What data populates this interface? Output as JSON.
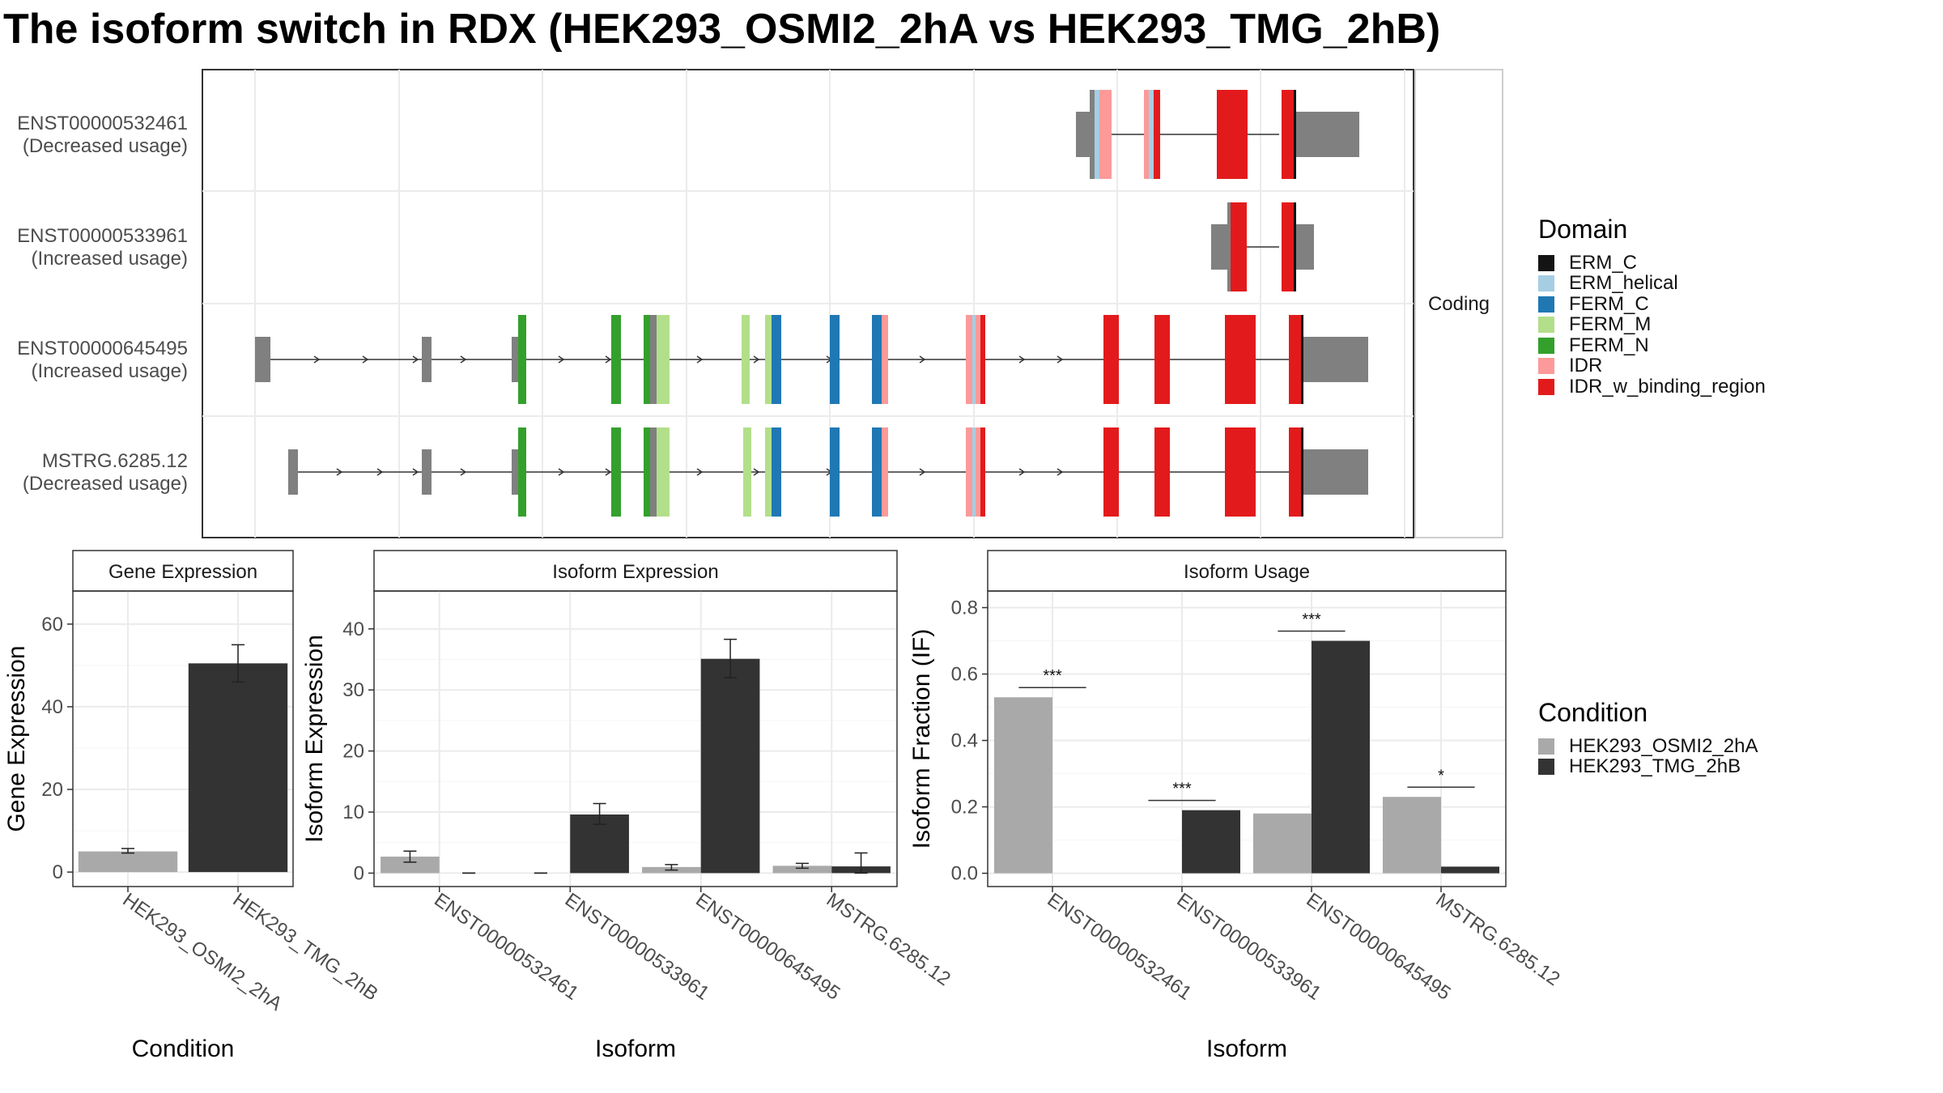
{
  "title": "The isoform switch in RDX (HEK293_OSMI2_2hA vs HEK293_TMG_2hB)",
  "colors": {
    "ERM_C": "#141414",
    "ERM_helical": "#a6cee3",
    "FERM_C": "#1f78b4",
    "FERM_M": "#b2df8a",
    "FERM_N": "#33a02c",
    "IDR": "#fb9a99",
    "IDR_w_binding_region": "#e31a1c",
    "utr": "#808080",
    "cond_A": "#a9a9a9",
    "cond_B": "#333333"
  },
  "domain_legend": {
    "title": "Domain",
    "items": [
      {
        "label": "ERM_C",
        "color": "#141414"
      },
      {
        "label": "ERM_helical",
        "color": "#a6cee3"
      },
      {
        "label": "FERM_C",
        "color": "#1f78b4"
      },
      {
        "label": "FERM_M",
        "color": "#b2df8a"
      },
      {
        "label": "FERM_N",
        "color": "#33a02c"
      },
      {
        "label": "IDR",
        "color": "#fb9a99"
      },
      {
        "label": "IDR_w_binding_region",
        "color": "#e31a1c"
      }
    ]
  },
  "condition_legend": {
    "title": "Condition",
    "items": [
      {
        "label": "HEK293_OSMI2_2hA",
        "color": "#a9a9a9"
      },
      {
        "label": "HEK293_TMG_2hB",
        "color": "#333333"
      }
    ]
  },
  "chart_data": [
    {
      "type": "gene-structure",
      "strip_label": "Coding",
      "transcripts": [
        {
          "name": "ENST00000532461",
          "usage": "(Decreased usage)",
          "exons": [
            {
              "start": 0.0,
              "end": 0.012,
              "tall": false
            },
            {
              "start": 0.012,
              "end": 0.031,
              "tall": true,
              "domain": "IDR"
            },
            {
              "start": 0.0,
              "end": 0.0,
              "tall": false
            },
            {
              "start": 0.063,
              "end": 0.075,
              "tall": true,
              "domain": "IDR_w_binding_region"
            },
            {
              "start": 0.112,
              "end": 0.136,
              "tall": true,
              "domain": "IDR_w_binding_region"
            },
            {
              "start": 0.151,
              "end": 0.162,
              "tall": true,
              "domain": "IDR_w_binding_region"
            },
            {
              "start": 0.162,
              "end": 0.215,
              "tall": false
            }
          ],
          "introns": [],
          "overlays": []
        },
        {
          "name": "ENST00000533961",
          "usage": "(Increased usage)",
          "exons": [],
          "introns": [],
          "overlays": []
        },
        {
          "name": "ENST00000645495",
          "usage": "(Increased usage)",
          "exons": [],
          "introns": [],
          "overlays": []
        },
        {
          "name": "MSTRG.6285.12",
          "usage": "(Decreased usage)",
          "exons": [],
          "introns": [],
          "overlays": []
        }
      ]
    },
    {
      "type": "bar",
      "title": "Gene Expression",
      "xlabel": "Condition",
      "ylabel": "Gene Expression",
      "categories": [
        "HEK293_OSMI2_2hA",
        "HEK293_TMG_2hB"
      ],
      "values": [
        5,
        50.5
      ],
      "errors": [
        [
          4.6,
          5.7
        ],
        [
          46,
          55
        ]
      ],
      "ylim": [
        -3.5,
        68
      ],
      "yticks": [
        "0",
        "20",
        "40",
        "60"
      ]
    },
    {
      "type": "bar",
      "title": "Isoform Expression",
      "xlabel": "Isoform",
      "ylabel": "Isoform Expression",
      "categories": [
        "ENST00000532461",
        "ENST00000533961",
        "ENST00000645495",
        "MSTRG.6285.12"
      ],
      "series": [
        {
          "name": "HEK293_OSMI2_2hA",
          "values": [
            2.7,
            0,
            1,
            1.2
          ],
          "errors": [
            [
              1.8,
              3.6
            ],
            [
              0,
              0
            ],
            [
              0.5,
              1.4
            ],
            [
              0.8,
              1.6
            ]
          ]
        },
        {
          "name": "HEK293_TMG_2hB",
          "values": [
            0,
            9.6,
            35.1,
            1.1
          ],
          "errors": [
            [
              0,
              0
            ],
            [
              8,
              11.4
            ],
            [
              32,
              38.3
            ],
            [
              0,
              3.3
            ]
          ]
        }
      ],
      "ylim": [
        -2.2,
        46.2
      ],
      "yticks": [
        "0",
        "10",
        "20",
        "30",
        "40"
      ]
    },
    {
      "type": "bar",
      "title": "Isoform Usage",
      "xlabel": "Isoform",
      "ylabel": "Isoform Fraction (IF)",
      "categories": [
        "ENST00000532461",
        "ENST00000533961",
        "ENST00000645495",
        "MSTRG.6285.12"
      ],
      "series": [
        {
          "name": "HEK293_OSMI2_2hA",
          "values": [
            0.53,
            0,
            0.18,
            0.23
          ]
        },
        {
          "name": "HEK293_TMG_2hB",
          "values": [
            0,
            0.19,
            0.7,
            0.02
          ]
        }
      ],
      "significance": [
        "***",
        "***",
        "***",
        "*"
      ],
      "ylim": [
        -0.04,
        0.85
      ],
      "yticks": [
        "0.0",
        "0.2",
        "0.4",
        "0.6",
        "0.8"
      ]
    }
  ]
}
